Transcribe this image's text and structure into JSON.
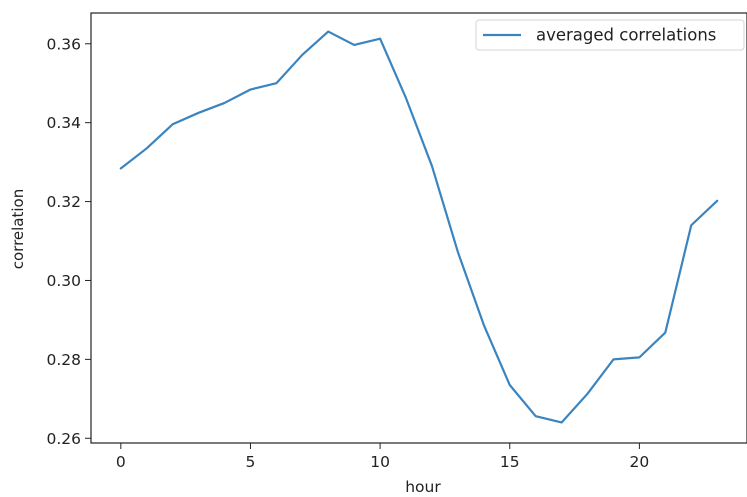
{
  "chart_data": {
    "type": "line",
    "title": "",
    "xlabel": "hour",
    "ylabel": "correlation",
    "xlim": [
      -1.15,
      24.15
    ],
    "ylim": [
      0.2588,
      0.3678
    ],
    "xticks": [
      0,
      5,
      10,
      15,
      20
    ],
    "xtick_labels": [
      "0",
      "5",
      "10",
      "15",
      "20"
    ],
    "yticks": [
      0.26,
      0.28,
      0.3,
      0.32,
      0.34,
      0.36
    ],
    "ytick_labels": [
      "0.26",
      "0.28",
      "0.30",
      "0.32",
      "0.34",
      "0.36"
    ],
    "grid": false,
    "legend": {
      "placement": "upper-right",
      "entries": [
        "averaged correlations"
      ]
    },
    "x": [
      0,
      1,
      2,
      3,
      4,
      5,
      6,
      7,
      8,
      9,
      10,
      11,
      12,
      13,
      14,
      15,
      16,
      17,
      18,
      19,
      20,
      21,
      22,
      23
    ],
    "series": [
      {
        "name": "averaged correlations",
        "color": "#3a84c0",
        "values": [
          0.3284,
          0.3335,
          0.3396,
          0.3425,
          0.345,
          0.3484,
          0.35,
          0.3572,
          0.3631,
          0.3597,
          0.3613,
          0.3462,
          0.329,
          0.3072,
          0.2887,
          0.2735,
          0.2656,
          0.264,
          0.2713,
          0.28,
          0.2805,
          0.2868,
          0.314,
          0.3202
        ]
      }
    ]
  }
}
